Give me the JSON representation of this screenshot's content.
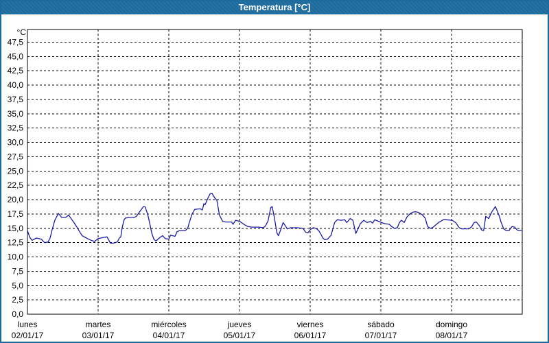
{
  "window": {
    "title": "Temperatura [°C]"
  },
  "colors": {
    "titlebar": "#1d6a9d",
    "frame": "#1d6a9d",
    "plot_background": "#ffffff",
    "grid": "#000000",
    "text": "#000000",
    "line": "#1a1aa8"
  },
  "chart_data": {
    "type": "line",
    "title": "Temperatura [°C]",
    "ylabel": "°C",
    "legend_position": "none",
    "grid": {
      "style": "dashed",
      "horizontal_step_degC": 2.5,
      "vertical": "day_boundaries"
    },
    "y_axis": {
      "unit_label": "°C",
      "min": 0,
      "max": 47.5,
      "step": 2.5,
      "decimal_separator": ",",
      "tick_labels": [
        "0,0",
        "2,5",
        "5,0",
        "7,5",
        "10,0",
        "12,5",
        "15,0",
        "17,5",
        "20,0",
        "22,5",
        "25,0",
        "27,5",
        "30,0",
        "32,5",
        "35,0",
        "37,5",
        "40,0",
        "42,5",
        "45,0",
        "47,5"
      ]
    },
    "x_axis": {
      "hours_total": 168,
      "days": [
        {
          "name": "lunes",
          "date": "02/01/17"
        },
        {
          "name": "martes",
          "date": "03/01/17"
        },
        {
          "name": "miércoles",
          "date": "04/01/17"
        },
        {
          "name": "jueves",
          "date": "05/01/17"
        },
        {
          "name": "viernes",
          "date": "06/01/17"
        },
        {
          "name": "sábado",
          "date": "07/01/17"
        },
        {
          "name": "domingo",
          "date": "08/01/17"
        }
      ]
    },
    "series": [
      {
        "name": "Temperatura",
        "unit": "°C",
        "color": "#1a1aa8",
        "x_unit": "hours",
        "points": [
          [
            0,
            14.6
          ],
          [
            0.8,
            13.4
          ],
          [
            1.6,
            12.9
          ],
          [
            3,
            13.3
          ],
          [
            4.7,
            13.1
          ],
          [
            5.8,
            12.5
          ],
          [
            7,
            12.6
          ],
          [
            7.7,
            13.3
          ],
          [
            8.4,
            14.8
          ],
          [
            9.3,
            16.4
          ],
          [
            10.5,
            17.6
          ],
          [
            11.6,
            16.9
          ],
          [
            13,
            16.9
          ],
          [
            14,
            17.3
          ],
          [
            15.1,
            16.5
          ],
          [
            15.8,
            16
          ],
          [
            16.8,
            15.2
          ],
          [
            17.7,
            14.4
          ],
          [
            18.6,
            13.7
          ],
          [
            20,
            13.3
          ],
          [
            21.6,
            12.9
          ],
          [
            22.8,
            12.7
          ],
          [
            24,
            13.2
          ],
          [
            25.9,
            13.4
          ],
          [
            27,
            13.5
          ],
          [
            28.2,
            12.4
          ],
          [
            29.1,
            12.4
          ],
          [
            30.5,
            12.6
          ],
          [
            31.2,
            13.3
          ],
          [
            31.7,
            13.5
          ],
          [
            32.1,
            15
          ],
          [
            32.8,
            16.5
          ],
          [
            33.3,
            16.8
          ],
          [
            34.9,
            16.9
          ],
          [
            36.3,
            16.9
          ],
          [
            37,
            17.1
          ],
          [
            38.4,
            18.1
          ],
          [
            39.4,
            18.8
          ],
          [
            39.9,
            18.8
          ],
          [
            40.8,
            17.5
          ],
          [
            41.5,
            15.9
          ],
          [
            42.2,
            14.2
          ],
          [
            42.9,
            13.1
          ],
          [
            43.6,
            12.8
          ],
          [
            45,
            13.4
          ],
          [
            45.9,
            13.7
          ],
          [
            46.8,
            13.2
          ],
          [
            48,
            13.1
          ],
          [
            48.6,
            13.8
          ],
          [
            50.1,
            13.6
          ],
          [
            50.8,
            14.4
          ],
          [
            51.7,
            14.6
          ],
          [
            53.6,
            14.6
          ],
          [
            54.4,
            15
          ],
          [
            54.9,
            15.9
          ],
          [
            55.9,
            17.5
          ],
          [
            56.8,
            18.3
          ],
          [
            58.7,
            18.4
          ],
          [
            59.4,
            18.2
          ],
          [
            59.9,
            19.3
          ],
          [
            60.3,
            19.1
          ],
          [
            61.3,
            20.3
          ],
          [
            62,
            21
          ],
          [
            62.7,
            21.1
          ],
          [
            63.6,
            20.3
          ],
          [
            64.3,
            19.9
          ],
          [
            65.2,
            17.3
          ],
          [
            66.3,
            16.2
          ],
          [
            67.5,
            16.1
          ],
          [
            69.3,
            16.1
          ],
          [
            69.8,
            15.7
          ],
          [
            70.7,
            16.4
          ],
          [
            72.1,
            16.2
          ],
          [
            73.8,
            15.6
          ],
          [
            74.9,
            15.3
          ],
          [
            76.3,
            15.2
          ],
          [
            78.6,
            15.2
          ],
          [
            80.1,
            15.1
          ],
          [
            80.8,
            15.4
          ],
          [
            81.7,
            16.3
          ],
          [
            82.6,
            18.6
          ],
          [
            83.1,
            18.8
          ],
          [
            83.8,
            17
          ],
          [
            84.7,
            14.2
          ],
          [
            85.2,
            13.7
          ],
          [
            86.1,
            14.9
          ],
          [
            86.8,
            16
          ],
          [
            87.5,
            15.5
          ],
          [
            88.2,
            14.9
          ],
          [
            89.3,
            15.1
          ],
          [
            91.7,
            15.1
          ],
          [
            93.5,
            15
          ],
          [
            94.5,
            14.3
          ],
          [
            95.2,
            14.2
          ],
          [
            96.1,
            14.8
          ],
          [
            97,
            15.1
          ],
          [
            98,
            15
          ],
          [
            98.9,
            14.6
          ],
          [
            99.6,
            14
          ],
          [
            100.3,
            13.3
          ],
          [
            101,
            13
          ],
          [
            101.9,
            13.1
          ],
          [
            103.1,
            13.8
          ],
          [
            104.3,
            16
          ],
          [
            105.2,
            16.5
          ],
          [
            106.5,
            16.4
          ],
          [
            107.7,
            16.5
          ],
          [
            108.4,
            16
          ],
          [
            109.6,
            16.7
          ],
          [
            110.5,
            16.4
          ],
          [
            111.5,
            14.1
          ],
          [
            112.3,
            15
          ],
          [
            113,
            15.8
          ],
          [
            114.2,
            16.4
          ],
          [
            115.3,
            16
          ],
          [
            116.5,
            16.2
          ],
          [
            117.2,
            15.9
          ],
          [
            117.9,
            16.5
          ],
          [
            118.8,
            16.3
          ],
          [
            120.2,
            16
          ],
          [
            121.4,
            15.8
          ],
          [
            122.8,
            15.7
          ],
          [
            123.7,
            15.3
          ],
          [
            124.6,
            15
          ],
          [
            125.6,
            15.1
          ],
          [
            126.3,
            16
          ],
          [
            127,
            16.4
          ],
          [
            127.9,
            16
          ],
          [
            128.9,
            17
          ],
          [
            129.8,
            17.5
          ],
          [
            130.8,
            17.8
          ],
          [
            131.7,
            17.9
          ],
          [
            132.6,
            17.8
          ],
          [
            134,
            17.4
          ],
          [
            135,
            16.8
          ],
          [
            135.9,
            15.3
          ],
          [
            136.8,
            15
          ],
          [
            137.5,
            15.1
          ],
          [
            139.6,
            16
          ],
          [
            141.2,
            16.5
          ],
          [
            142.1,
            16.5
          ],
          [
            144.2,
            16.4
          ],
          [
            145.4,
            16
          ],
          [
            146.6,
            15.1
          ],
          [
            147.5,
            14.9
          ],
          [
            149.8,
            14.9
          ],
          [
            150.7,
            15.2
          ],
          [
            151.7,
            16
          ],
          [
            152.4,
            16.1
          ],
          [
            153.5,
            15.4
          ],
          [
            154.2,
            14.7
          ],
          [
            154.9,
            14.6
          ],
          [
            155.6,
            17.1
          ],
          [
            156.6,
            16.7
          ],
          [
            157.7,
            17.9
          ],
          [
            158.9,
            18.8
          ],
          [
            160.1,
            17.3
          ],
          [
            160.8,
            16.1
          ],
          [
            161.7,
            14.9
          ],
          [
            162.6,
            14.6
          ],
          [
            163.5,
            14.6
          ],
          [
            164.5,
            15.3
          ],
          [
            165.4,
            15.2
          ],
          [
            166.3,
            14.7
          ],
          [
            167,
            14.6
          ],
          [
            167.7,
            14.6
          ]
        ]
      }
    ]
  }
}
